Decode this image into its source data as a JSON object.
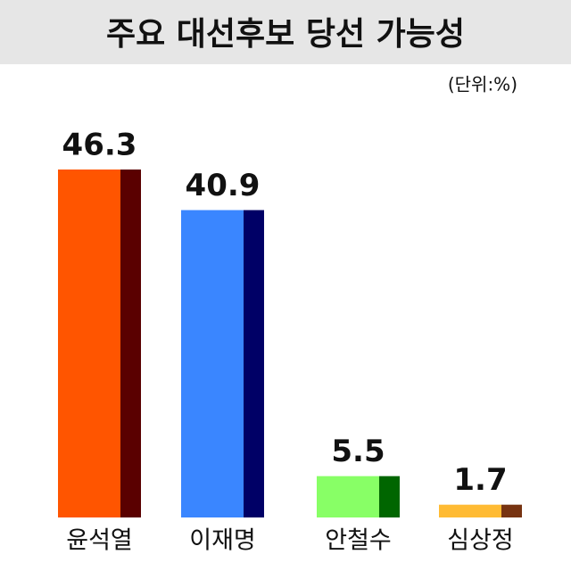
{
  "chart_data": {
    "type": "bar",
    "title": "주요 대선후보 당선 가능성",
    "unit": "(단위:%)",
    "categories": [
      "윤석열",
      "이재명",
      "안철수",
      "심상정"
    ],
    "values": [
      46.3,
      40.9,
      5.5,
      1.7
    ],
    "colors": [
      "#ff5500",
      "#3a86ff",
      "#88ff66",
      "#ffbb33"
    ],
    "side_colors": [
      "#5a0000",
      "#000066",
      "#006600",
      "#773311"
    ]
  }
}
